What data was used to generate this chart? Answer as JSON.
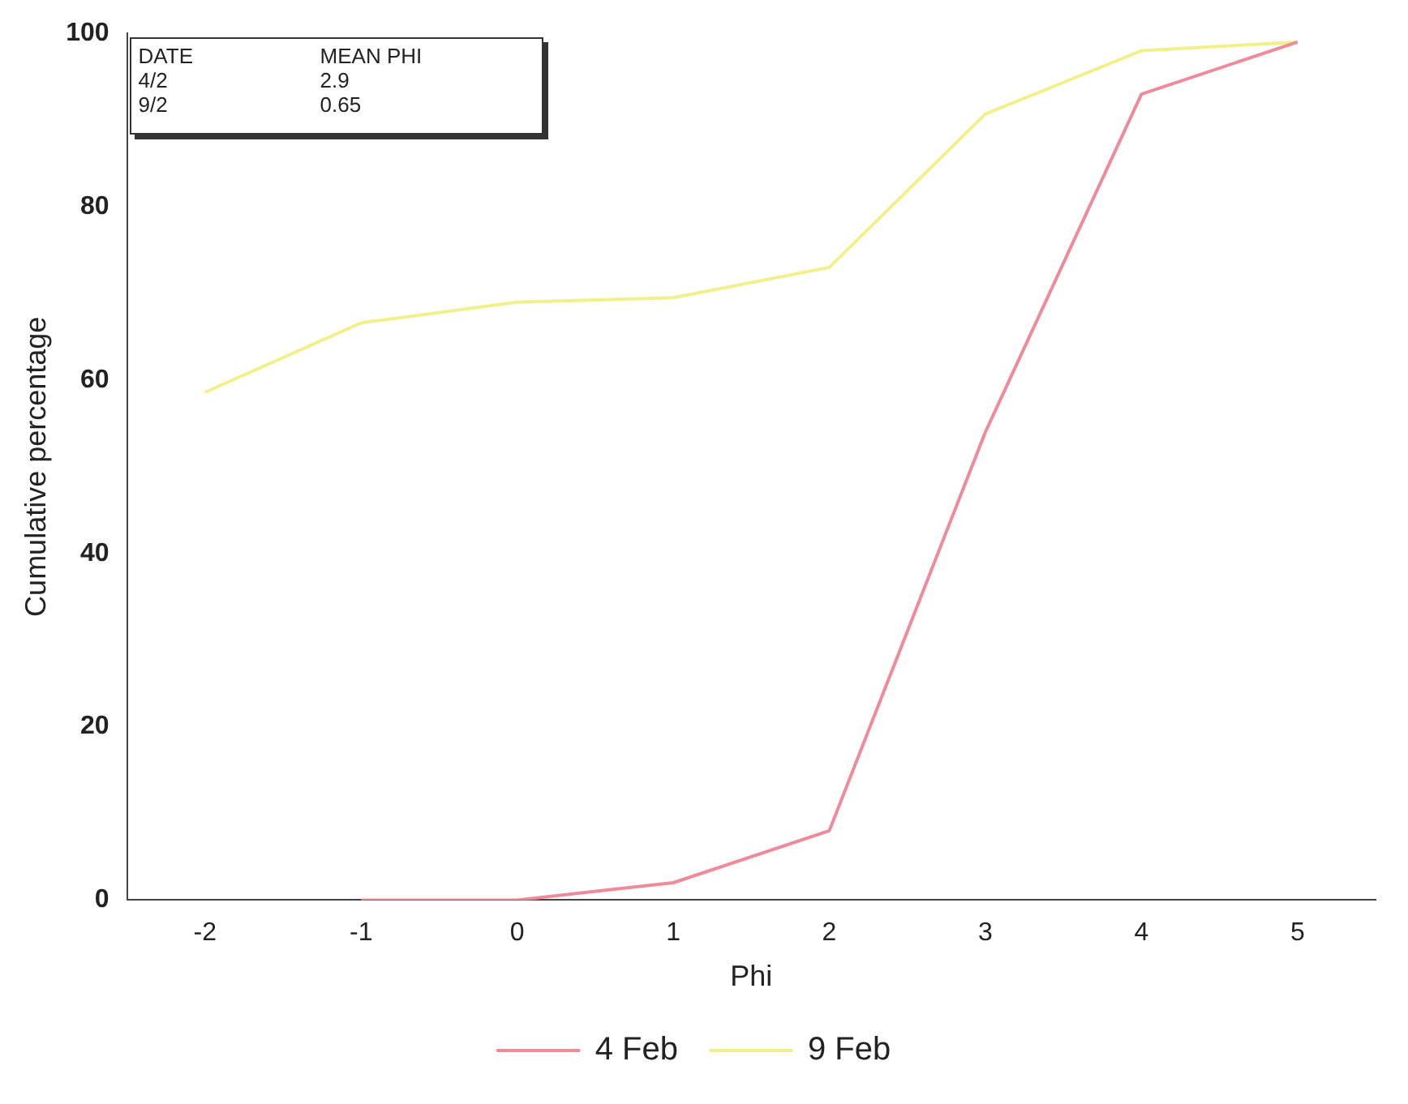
{
  "chart_data": {
    "type": "line",
    "xlabel": "Phi",
    "ylabel": "Cumulative percentage",
    "categories": [
      "-2",
      "-1",
      "0",
      "1",
      "2",
      "3",
      "4",
      "5"
    ],
    "series": [
      {
        "name": "4 Feb",
        "color": "#ee8a9a",
        "values": [
          null,
          0,
          0,
          2,
          8,
          54,
          93,
          99
        ]
      },
      {
        "name": "9 Feb",
        "color": "#f2f08a",
        "values": [
          58.6,
          66.6,
          69,
          69.5,
          73,
          90.7,
          98,
          99
        ]
      }
    ],
    "ylim": [
      0,
      100
    ],
    "yticks": [
      0,
      20,
      40,
      60,
      80,
      100
    ],
    "legend": "bottom",
    "marker": "none",
    "line_style": "solid",
    "annotations": [
      "DATE",
      "MEAN PHI",
      "4/2",
      "2.9",
      "9/2",
      "0.65"
    ]
  }
}
